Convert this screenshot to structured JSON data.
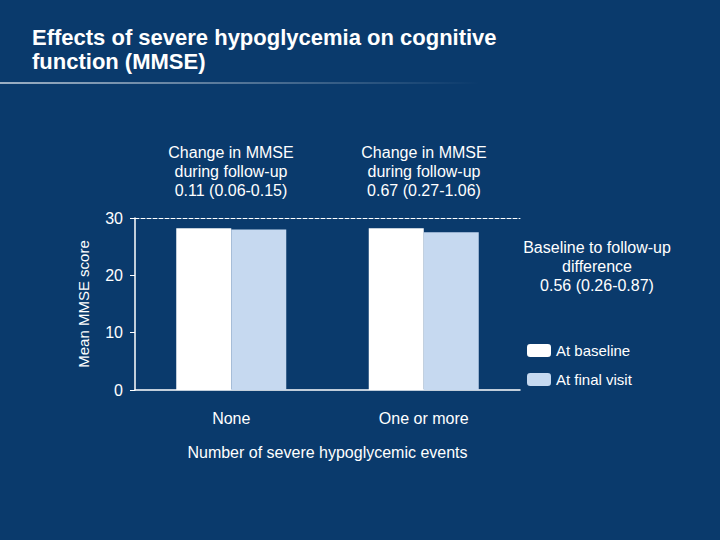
{
  "chart_data": {
    "type": "bar",
    "title": "Effects of severe hypoglycemia on cognitive\nfunction (MMSE)",
    "y_label": "Mean MMSE score",
    "x_label": "Number of severe hypoglycemic events",
    "categories": [
      "None",
      "One or more"
    ],
    "series": [
      {
        "name": "At baseline",
        "color": "#ffffff",
        "values": [
          28.2,
          28.2
        ]
      },
      {
        "name": "At final visit",
        "color": "#c6d9f0",
        "values": [
          28.0,
          27.5
        ]
      }
    ],
    "ylim": [
      0,
      30
    ],
    "yticks": [
      0,
      10,
      20,
      30
    ],
    "grid": false,
    "legend": "right",
    "annotations": [
      "Change in MMSE\nduring follow-up\n0.11 (0.06-0.15)",
      "Change in MMSE\nduring follow-up\n0.67 (0.27-1.06)",
      "Baseline to follow-up\ndifference\n0.56 (0.26-0.87)"
    ]
  }
}
